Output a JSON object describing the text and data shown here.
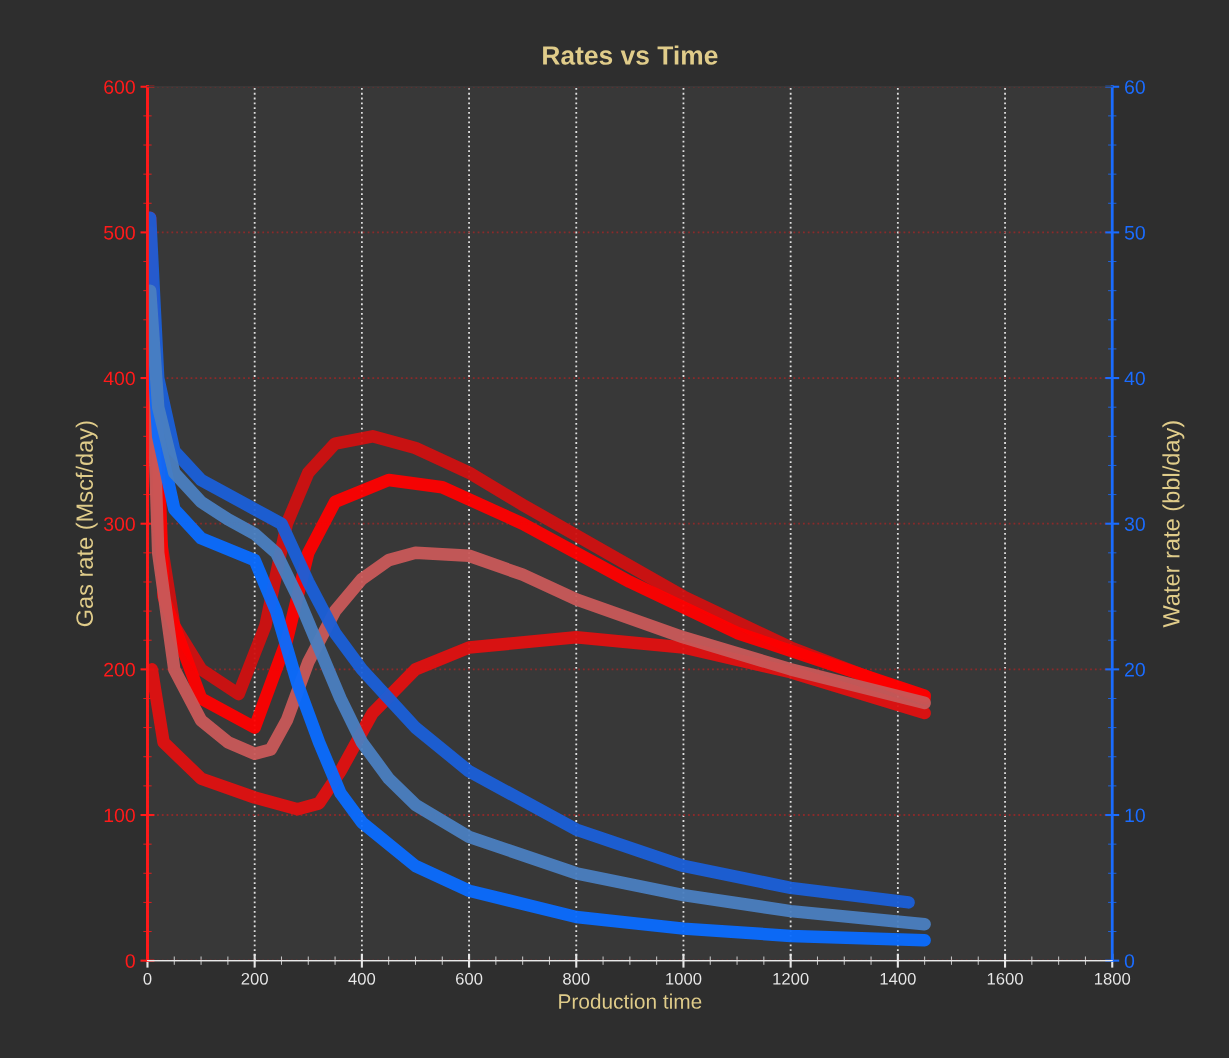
{
  "chart_data": {
    "type": "line",
    "title": "Rates vs Time",
    "xlabel": "Production time",
    "ylabel": "Gas rate (Mscf/day)",
    "y2label": "Water rate (bbl/day)",
    "xlim": [
      0,
      1800
    ],
    "xticks": [
      0,
      200,
      400,
      600,
      800,
      1000,
      1200,
      1400,
      1600,
      1800
    ],
    "ylim": [
      0,
      600
    ],
    "yticks": [
      0,
      100,
      200,
      300,
      400,
      500,
      600
    ],
    "y2lim": [
      0,
      60
    ],
    "y2ticks": [
      0,
      10,
      20,
      30,
      40,
      50,
      60
    ],
    "grid": true,
    "marker": "none",
    "line_style": "solid",
    "series": [
      {
        "color": "#d01010",
        "x": [
          5,
          20,
          50,
          100,
          170,
          220,
          260,
          300,
          350,
          420,
          500,
          600,
          700,
          800,
          1000,
          1200,
          1450
        ],
        "values": [
          510,
          300,
          230,
          200,
          183,
          230,
          300,
          335,
          355,
          360,
          352,
          335,
          313,
          292,
          250,
          215,
          180
        ]
      },
      {
        "color": "#ff0000",
        "x": [
          5,
          30,
          100,
          200,
          260,
          300,
          350,
          450,
          550,
          700,
          900,
          1100,
          1450
        ],
        "values": [
          500,
          250,
          180,
          160,
          220,
          280,
          315,
          330,
          325,
          300,
          260,
          225,
          182
        ]
      },
      {
        "color": "#e01010",
        "x": [
          8,
          30,
          100,
          200,
          280,
          320,
          360,
          420,
          500,
          600,
          800,
          1000,
          1200,
          1450
        ],
        "values": [
          200,
          150,
          125,
          112,
          104,
          108,
          130,
          170,
          200,
          215,
          222,
          215,
          198,
          170
        ]
      },
      {
        "color": "#c85858",
        "x": [
          5,
          20,
          50,
          100,
          150,
          200,
          230,
          260,
          300,
          350,
          400,
          450,
          500,
          600,
          700,
          800,
          1000,
          1200,
          1450
        ],
        "values": [
          450,
          280,
          200,
          165,
          150,
          142,
          145,
          165,
          205,
          240,
          262,
          275,
          280,
          278,
          265,
          248,
          222,
          200,
          177
        ]
      },
      {
        "axis": "y2",
        "color": "#1a5fd8",
        "x": [
          5,
          20,
          50,
          100,
          200,
          250,
          300,
          350,
          400,
          450,
          500,
          600,
          800,
          1000,
          1200,
          1420
        ],
        "values": [
          51,
          40,
          35,
          33,
          31,
          30,
          26,
          22.5,
          20,
          18,
          16,
          13,
          9,
          6.5,
          5,
          4
        ]
      },
      {
        "axis": "y2",
        "color": "#0a6cff",
        "x": [
          5,
          20,
          50,
          100,
          200,
          240,
          280,
          320,
          360,
          400,
          500,
          600,
          800,
          1000,
          1200,
          1450
        ],
        "values": [
          45,
          36,
          31,
          29,
          27.5,
          24,
          19,
          15,
          11.5,
          9.5,
          6.5,
          4.8,
          3,
          2.2,
          1.7,
          1.4
        ]
      },
      {
        "axis": "y2",
        "color": "#4a7ec0",
        "x": [
          5,
          20,
          50,
          100,
          150,
          200,
          240,
          280,
          320,
          360,
          400,
          450,
          500,
          600,
          800,
          1000,
          1200,
          1450
        ],
        "values": [
          46,
          38,
          33.5,
          31.5,
          30.3,
          29.3,
          28,
          25,
          21.5,
          18,
          15,
          12.5,
          10.7,
          8.5,
          6,
          4.5,
          3.4,
          2.5
        ]
      }
    ]
  }
}
